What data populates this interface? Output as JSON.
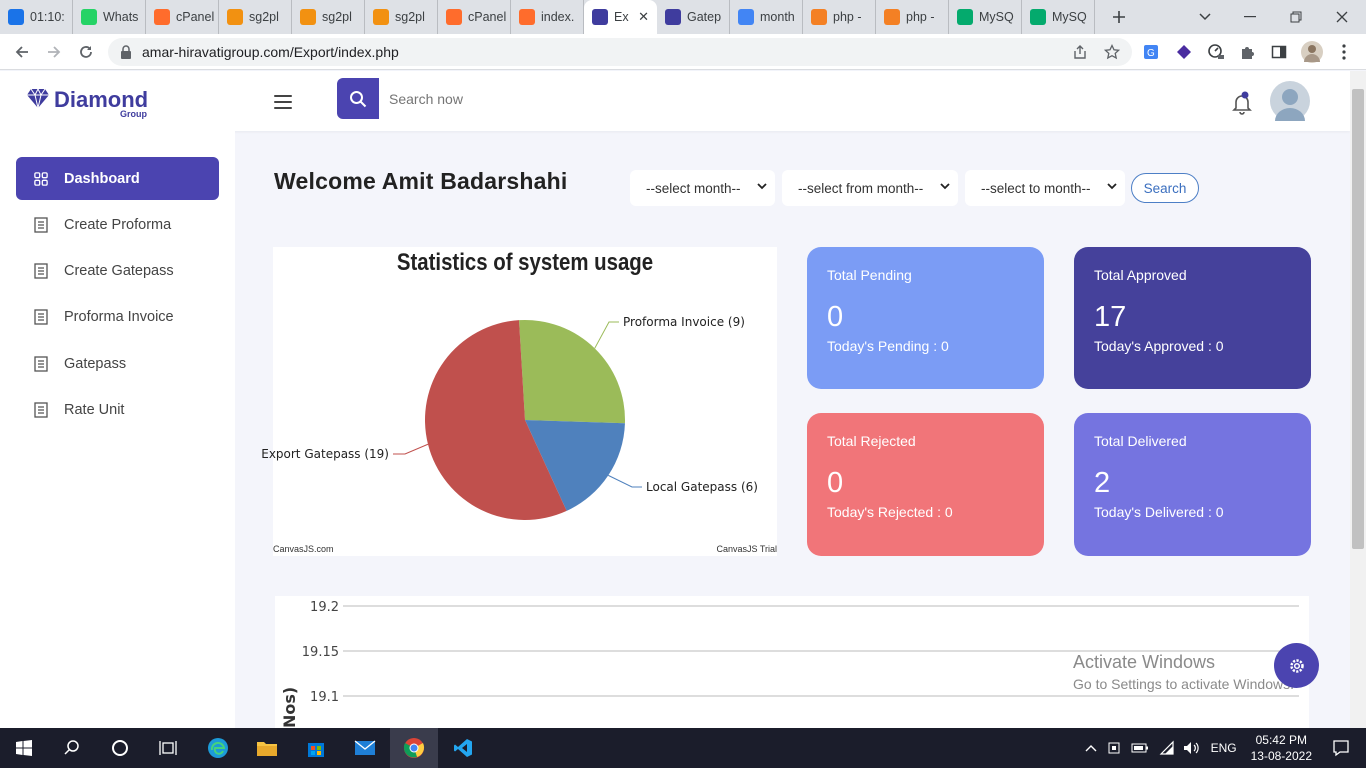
{
  "browser": {
    "tabs": [
      {
        "title": "01:10:",
        "icon": "clock-icon",
        "color": "#1a73e8"
      },
      {
        "title": "Whats",
        "icon": "whatsapp-icon",
        "color": "#25d366"
      },
      {
        "title": "cPanel",
        "icon": "cpanel-icon",
        "color": "#ff6c2c"
      },
      {
        "title": "sg2pl",
        "icon": "pma-icon",
        "color": "#f29111"
      },
      {
        "title": "sg2pl",
        "icon": "pma-icon",
        "color": "#f29111"
      },
      {
        "title": "sg2pl",
        "icon": "pma-icon",
        "color": "#f29111"
      },
      {
        "title": "cPanel",
        "icon": "cpanel-icon",
        "color": "#ff6c2c"
      },
      {
        "title": "index.",
        "icon": "cpanel-icon",
        "color": "#ff6c2c"
      },
      {
        "title": "Ex",
        "icon": "diamond-icon",
        "color": "#3f3c9e",
        "active": true
      },
      {
        "title": "Gatep",
        "icon": "diamond-icon",
        "color": "#3f3c9e"
      },
      {
        "title": "month",
        "icon": "google-icon",
        "color": "#4285f4"
      },
      {
        "title": "php -",
        "icon": "stackoverflow-icon",
        "color": "#f48024"
      },
      {
        "title": "php -",
        "icon": "stackoverflow-icon",
        "color": "#f48024"
      },
      {
        "title": "MySQ",
        "icon": "w3schools-icon",
        "color": "#04aa6d"
      },
      {
        "title": "MySQ",
        "icon": "w3schools-icon",
        "color": "#04aa6d"
      }
    ],
    "url": "amar-hiravatigroup.com/Export/index.php"
  },
  "header": {
    "logo_text": "Diamond",
    "logo_sub": "Group",
    "search_placeholder": "Search now"
  },
  "sidebar": {
    "items": [
      {
        "label": "Dashboard"
      },
      {
        "label": "Create Proforma"
      },
      {
        "label": "Create Gatepass"
      },
      {
        "label": "Proforma Invoice"
      },
      {
        "label": "Gatepass"
      },
      {
        "label": "Rate Unit"
      }
    ]
  },
  "main": {
    "welcome": "Welcome Amit Badarshahi",
    "filters": {
      "month": "--select month--",
      "from_month": "--select from month--",
      "to_month": "--select to month--",
      "search_label": "Search"
    },
    "cards": [
      {
        "title": "Total Pending",
        "value": "0",
        "sub": "Today's Pending : 0",
        "color": "#7b9cf5"
      },
      {
        "title": "Total Approved",
        "value": "17",
        "sub": "Today's Approved : 0",
        "color": "#45419b"
      },
      {
        "title": "Total Rejected",
        "value": "0",
        "sub": "Today's Rejected : 0",
        "color": "#f17579"
      },
      {
        "title": "Total Delivered",
        "value": "2",
        "sub": "Today's Delivered : 0",
        "color": "#7574e0"
      }
    ],
    "credits": {
      "left": "CanvasJS.com",
      "right": "CanvasJS Trial"
    }
  },
  "chart_data": [
    {
      "type": "pie",
      "title": "Statistics of system usage",
      "slices": [
        {
          "label": "Proforma Invoice (9)",
          "value": 9,
          "color": "#9bbb59"
        },
        {
          "label": "Local Gatepass (6)",
          "value": 6,
          "color": "#4f81bd"
        },
        {
          "label": "Export Gatepass (19)",
          "value": 19,
          "color": "#c0504d"
        }
      ]
    },
    {
      "type": "line",
      "ylabel": "Nos)",
      "y_ticks": [
        "19.2",
        "19.15",
        "19.1"
      ],
      "series": []
    }
  ],
  "overlay": {
    "watermark_line1": "Activate Windows",
    "watermark_line2": "Go to Settings to activate Windows."
  },
  "taskbar": {
    "time": "05:42 PM",
    "date": "13-08-2022",
    "language": "ENG"
  }
}
